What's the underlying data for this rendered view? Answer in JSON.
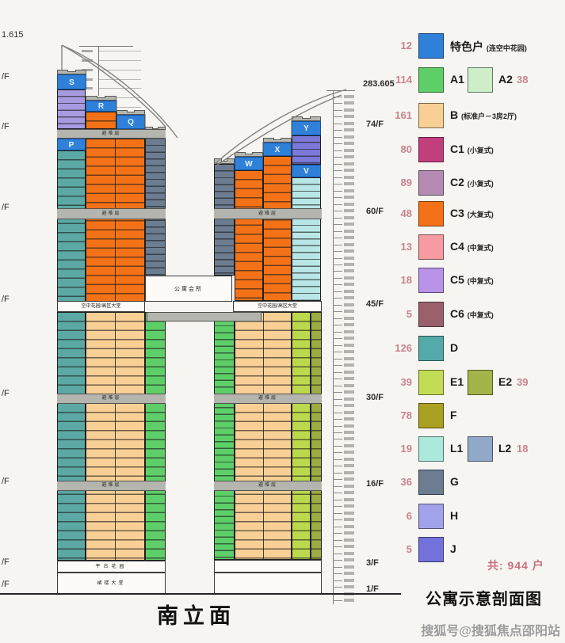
{
  "page": {
    "section_caption": "南立面",
    "title": "公寓示意剖面图",
    "total": "共: 944 户",
    "watermark": "搜狐号@搜狐焦点邵阳站"
  },
  "building": {
    "refuge_label": "避难层",
    "clubhouse_label": "公寓会所",
    "sky_lobby_label": "空中花园/高区大堂",
    "platform_label": "平台花园",
    "podium_label": "裙楼大堂",
    "left_blocks": [
      "S",
      "R",
      "Q",
      "P"
    ],
    "right_blocks": [
      "W",
      "X",
      "Y",
      "V"
    ]
  },
  "rulers": {
    "left": {
      "top_elevation": "1.615",
      "floor_label": "/F",
      "floor_label_count": 8
    },
    "right": {
      "top_elevation": "283.605",
      "floor_labels": [
        "74/F",
        "60/F",
        "45/F",
        "30/F",
        "16/F",
        "3/F",
        "1/F"
      ]
    }
  },
  "legend": {
    "rows": [
      {
        "count": "12",
        "color": "#2f80d9",
        "label": "特色户",
        "note": "(连空中花园)"
      },
      {
        "count": "114",
        "color": "#5ecf68",
        "label": "A1",
        "second": {
          "color": "#cdeec8",
          "label": "A2",
          "count": "38"
        }
      },
      {
        "count": "161",
        "color": "#f8cf95",
        "label": "B",
        "note": "(标准户－3房2厅)"
      },
      {
        "count": "80",
        "color": "#c23f7d",
        "label": "C1",
        "note": "(小复式)"
      },
      {
        "count": "89",
        "color": "#b58bb4",
        "label": "C2",
        "note": "(小复式)"
      },
      {
        "count": "48",
        "color": "#f37218",
        "label": "C3",
        "note": "(大复式)"
      },
      {
        "count": "13",
        "color": "#f59ba1",
        "label": "C4",
        "note": "(中复式)"
      },
      {
        "count": "18",
        "color": "#b993e8",
        "label": "C5",
        "note": "(中复式)"
      },
      {
        "count": "5",
        "color": "#9a616c",
        "label": "C6",
        "note": "(中复式)"
      },
      {
        "count": "126",
        "color": "#53aaa8",
        "label": "D"
      },
      {
        "count": "39",
        "color": "#c2dc55",
        "label": "E1",
        "second": {
          "color": "#a3b44b",
          "label": "E2",
          "count": "39"
        }
      },
      {
        "count": "78",
        "color": "#aaa021",
        "label": "F"
      },
      {
        "count": "19",
        "color": "#abe9da",
        "label": "L1",
        "second": {
          "color": "#91a9c9",
          "label": "L2",
          "count": "18"
        }
      },
      {
        "count": "36",
        "color": "#6c7d92",
        "label": "G"
      },
      {
        "count": "6",
        "color": "#a2a2ea",
        "label": "H"
      },
      {
        "count": "5",
        "color": "#7272da",
        "label": "J"
      }
    ]
  }
}
